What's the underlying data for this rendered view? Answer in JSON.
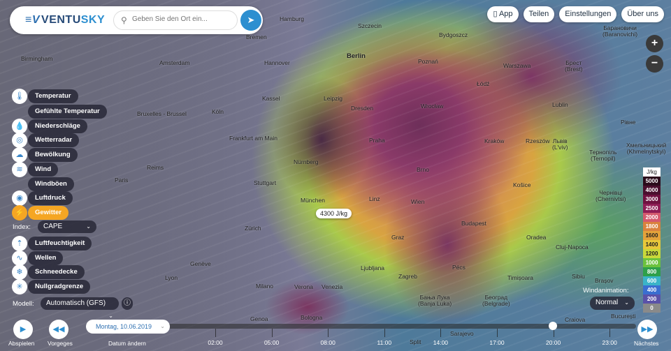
{
  "app": {
    "brand_left": "VENTU",
    "brand_right": "SKY",
    "search_placeholder": "Geben Sie den Ort ein..."
  },
  "top_buttons": [
    "App",
    "Teilen",
    "Einstellungen",
    "Über uns"
  ],
  "zoom": {
    "plus": "+",
    "minus": "−"
  },
  "layers": [
    {
      "label": "Temperatur",
      "icon": "thermometer-icon"
    },
    {
      "label": "Gefühlte Temperatur",
      "icon": ""
    },
    {
      "label": "Niederschläge",
      "icon": "drop-icon"
    },
    {
      "label": "Wetterradar",
      "icon": "radar-icon"
    },
    {
      "label": "Bewölkung",
      "icon": "cloud-icon"
    },
    {
      "label": "Wind",
      "icon": "wind-icon"
    },
    {
      "label": "Windböen",
      "icon": ""
    },
    {
      "label": "Luftdruck",
      "icon": "pressure-icon"
    },
    {
      "label": "Gewitter",
      "icon": "lightning-icon",
      "active": true
    },
    {
      "label": "Luftfeuchtigkeit",
      "icon": "humidity-icon"
    },
    {
      "label": "Wellen",
      "icon": "waves-icon"
    },
    {
      "label": "Schneedecke",
      "icon": "snowflake-icon"
    },
    {
      "label": "Nullgradgrenze",
      "icon": "freezing-level-icon"
    }
  ],
  "index": {
    "label": "Index:",
    "value": "CAPE"
  },
  "model": {
    "label": "Modell:",
    "value": "Automatisch (GFS)"
  },
  "wind_animation": {
    "label": "Windanimation:",
    "value": "Normal"
  },
  "tooltip": "4300 J/kg",
  "legend": {
    "unit": "J/kg",
    "steps": [
      {
        "v": "5000",
        "c": "#2a0a1a"
      },
      {
        "v": "4000",
        "c": "#4a0f2e"
      },
      {
        "v": "3000",
        "c": "#6e1240"
      },
      {
        "v": "2500",
        "c": "#8e1d55"
      },
      {
        "v": "2000",
        "c": "#d45a6e"
      },
      {
        "v": "1800",
        "c": "#d9823e"
      },
      {
        "v": "1600",
        "c": "#e3a23a"
      },
      {
        "v": "1400",
        "c": "#e8c83a"
      },
      {
        "v": "1200",
        "c": "#c8d83a"
      },
      {
        "v": "1000",
        "c": "#6cc23e"
      },
      {
        "v": "800",
        "c": "#2ea04a"
      },
      {
        "v": "600",
        "c": "#3ab4c8"
      },
      {
        "v": "400",
        "c": "#3a6ed0"
      },
      {
        "v": "200",
        "c": "#5a52a8"
      },
      {
        "v": "0",
        "c": "#8a8a8a"
      }
    ]
  },
  "timeline": {
    "play": "Abspielen",
    "prev": "Vorgeges",
    "next": "Nächstes",
    "date": "Montag, 10.06.2019",
    "change_date": "Datum ändern",
    "hours": [
      "02:00",
      "05:00",
      "08:00",
      "11:00",
      "14:00",
      "17:00",
      "20:00",
      "23:00"
    ],
    "current": "20:00"
  },
  "cities": [
    "Hamburg",
    "Szczecin",
    "Bydgoszcz",
    "Bremen",
    "Birmingham",
    "Amsterdam",
    "Hannover",
    "Berlin",
    "Poznań",
    "Warszawa",
    "Брест\n(Brest)",
    "Łódź",
    "Kassel",
    "Leipzig",
    "Dresden",
    "Wrocław",
    "Lublin",
    "Bruxelles - Brussel",
    "Köln",
    "Frankfurt am Main",
    "Praha",
    "Kraków",
    "Rzeszów",
    "Львів\n(L'viv)",
    "Тернопіль\n(Ternopil)",
    "Рівне",
    "Paris",
    "Reims",
    "Nürnberg",
    "Stuttgart",
    "Brno",
    "Košice",
    "Чернівці\n(Chernivtsi)",
    "München",
    "Linz",
    "Wien",
    "Zürich",
    "Budapest",
    "Oradea",
    "Cluj-Napoca",
    "Graz",
    "Genève",
    "Lyon",
    "Ljubljana",
    "Zagreb",
    "Pécs",
    "Timișoara",
    "Sibiu",
    "Brașov",
    "Milano",
    "Verona",
    "Venezia",
    "Београд\n(Belgrade)",
    "Бања Лука\n(Banja Luka)",
    "Genoa",
    "Bologna",
    "Craiova",
    "București",
    "Sarajevo",
    "Split",
    "Хмельницький\n(Khmelnytskyi)",
    "Барановичи\n(Baranovichi)"
  ]
}
